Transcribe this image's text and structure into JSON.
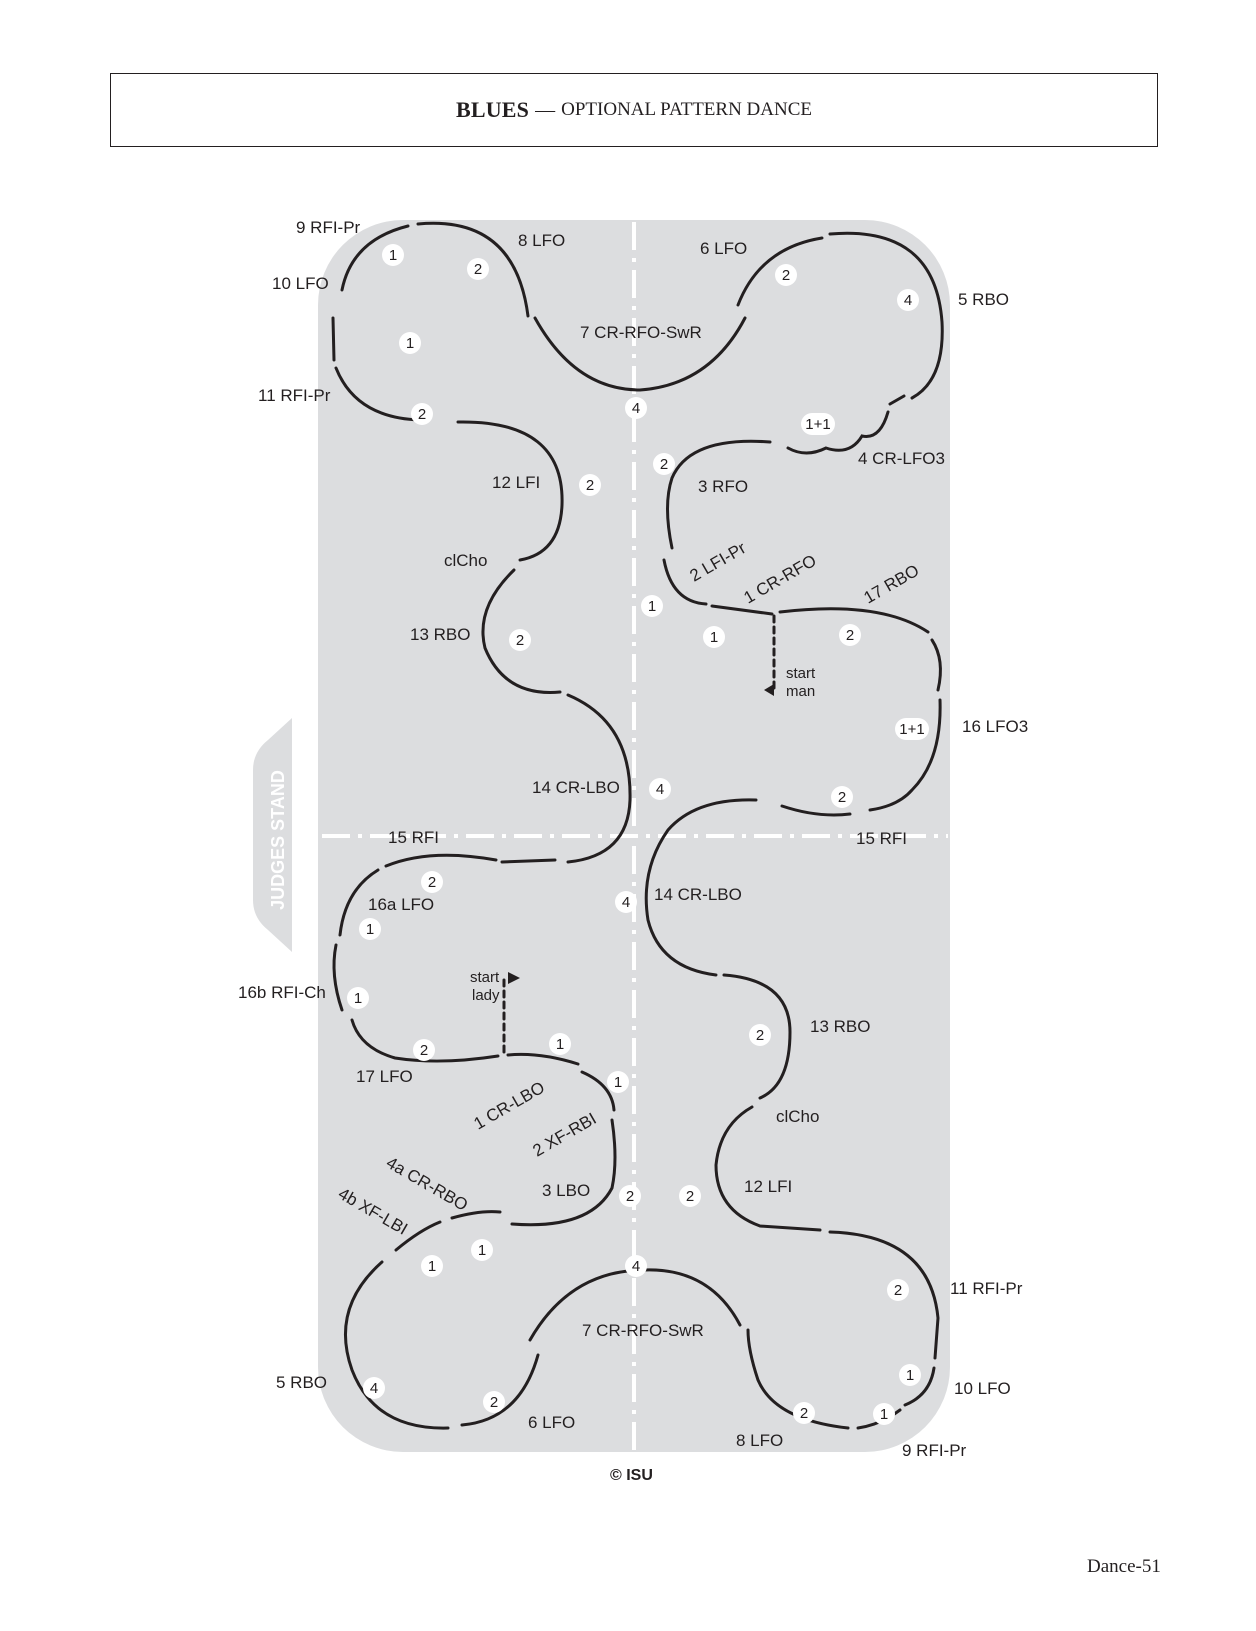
{
  "header": {
    "title": "BLUES",
    "dash": "—",
    "subtitle": "OPTIONAL PATTERN DANCE"
  },
  "judges_stand": "JUDGES STAND",
  "copyright": "© ISU",
  "page_number": "Dance-51",
  "start_man": [
    "start",
    "man"
  ],
  "start_lady": [
    "start",
    "lady"
  ],
  "step_labels": {
    "top_left": [
      "9 RFI-Pr",
      "10 LFO",
      "11 RFI-Pr",
      "8 LFO",
      "7 CR-RFO-SwR",
      "12 LFI",
      "clCho",
      "13 RBO",
      "14 CR-LBO",
      "15 RFI"
    ],
    "top_right": [
      "6 LFO",
      "5 RBO",
      "4 CR-LFO3",
      "3 RFO",
      "2 LFI-Pr",
      "1 CR-RFO",
      "17 RBO",
      "16 LFO3",
      "15 RFI"
    ],
    "bottom_left": [
      "16a LFO",
      "16b RFI-Ch",
      "17 LFO",
      "1 CR-LBO",
      "2 XF-RBI",
      "4a CR-RBO",
      "4b XF-LBI",
      "3 LBO",
      "5 RBO",
      "6 LFO",
      "7 CR-RFO-SwR"
    ],
    "bottom_right": [
      "14 CR-LBO",
      "13 RBO",
      "clCho",
      "12 LFI",
      "11 RFI-Pr",
      "10 LFO",
      "9 RFI-Pr",
      "8 LFO"
    ]
  },
  "beat_counts": [
    "1",
    "2",
    "4",
    "1+1"
  ],
  "colors": {
    "rink": "#dcdddf",
    "ink": "#231f20",
    "white": "#ffffff"
  }
}
